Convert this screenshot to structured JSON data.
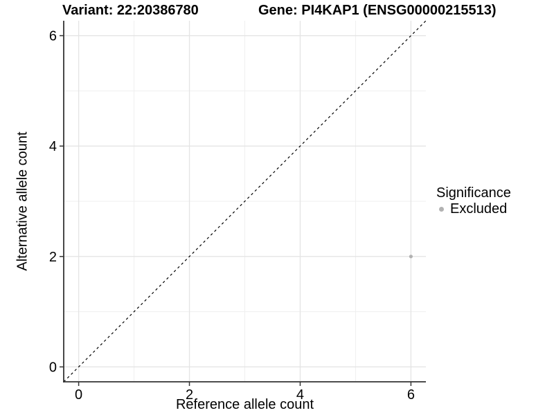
{
  "page": {
    "title_variant": "Variant: 22:20386780",
    "title_gene": "Gene: PI4KAP1 (ENSG00000215513)"
  },
  "chart_data": {
    "type": "scatter",
    "title_left": "Variant: 22:20386780",
    "title_right": "Gene: PI4KAP1 (ENSG00000215513)",
    "xlabel": "Reference allele count",
    "ylabel": "Alternative allele count",
    "xlim": [
      -0.27,
      6.27
    ],
    "ylim": [
      -0.27,
      6.27
    ],
    "x_ticks": [
      0,
      2,
      4,
      6
    ],
    "y_ticks": [
      0,
      2,
      4,
      6
    ],
    "x_minor_ticks": [
      1,
      3,
      5
    ],
    "y_minor_ticks": [
      1,
      3,
      5
    ],
    "grid": true,
    "points": [
      {
        "x": 6,
        "y": 2,
        "series": "Excluded"
      }
    ],
    "identity_line": {
      "style": "dashed",
      "from": [
        -0.27,
        -0.27
      ],
      "to": [
        6.27,
        6.27
      ]
    },
    "legend": {
      "title": "Significance",
      "position": "right",
      "entries": [
        {
          "label": "Excluded",
          "color": "#b2b2b2"
        }
      ]
    },
    "colors": {
      "point": "#b2b2b2",
      "grid_major": "#e4e4e4",
      "grid_minor": "#efefef",
      "axis_line": "#333333",
      "identity_line": "#000000",
      "background": "#ffffff"
    }
  }
}
